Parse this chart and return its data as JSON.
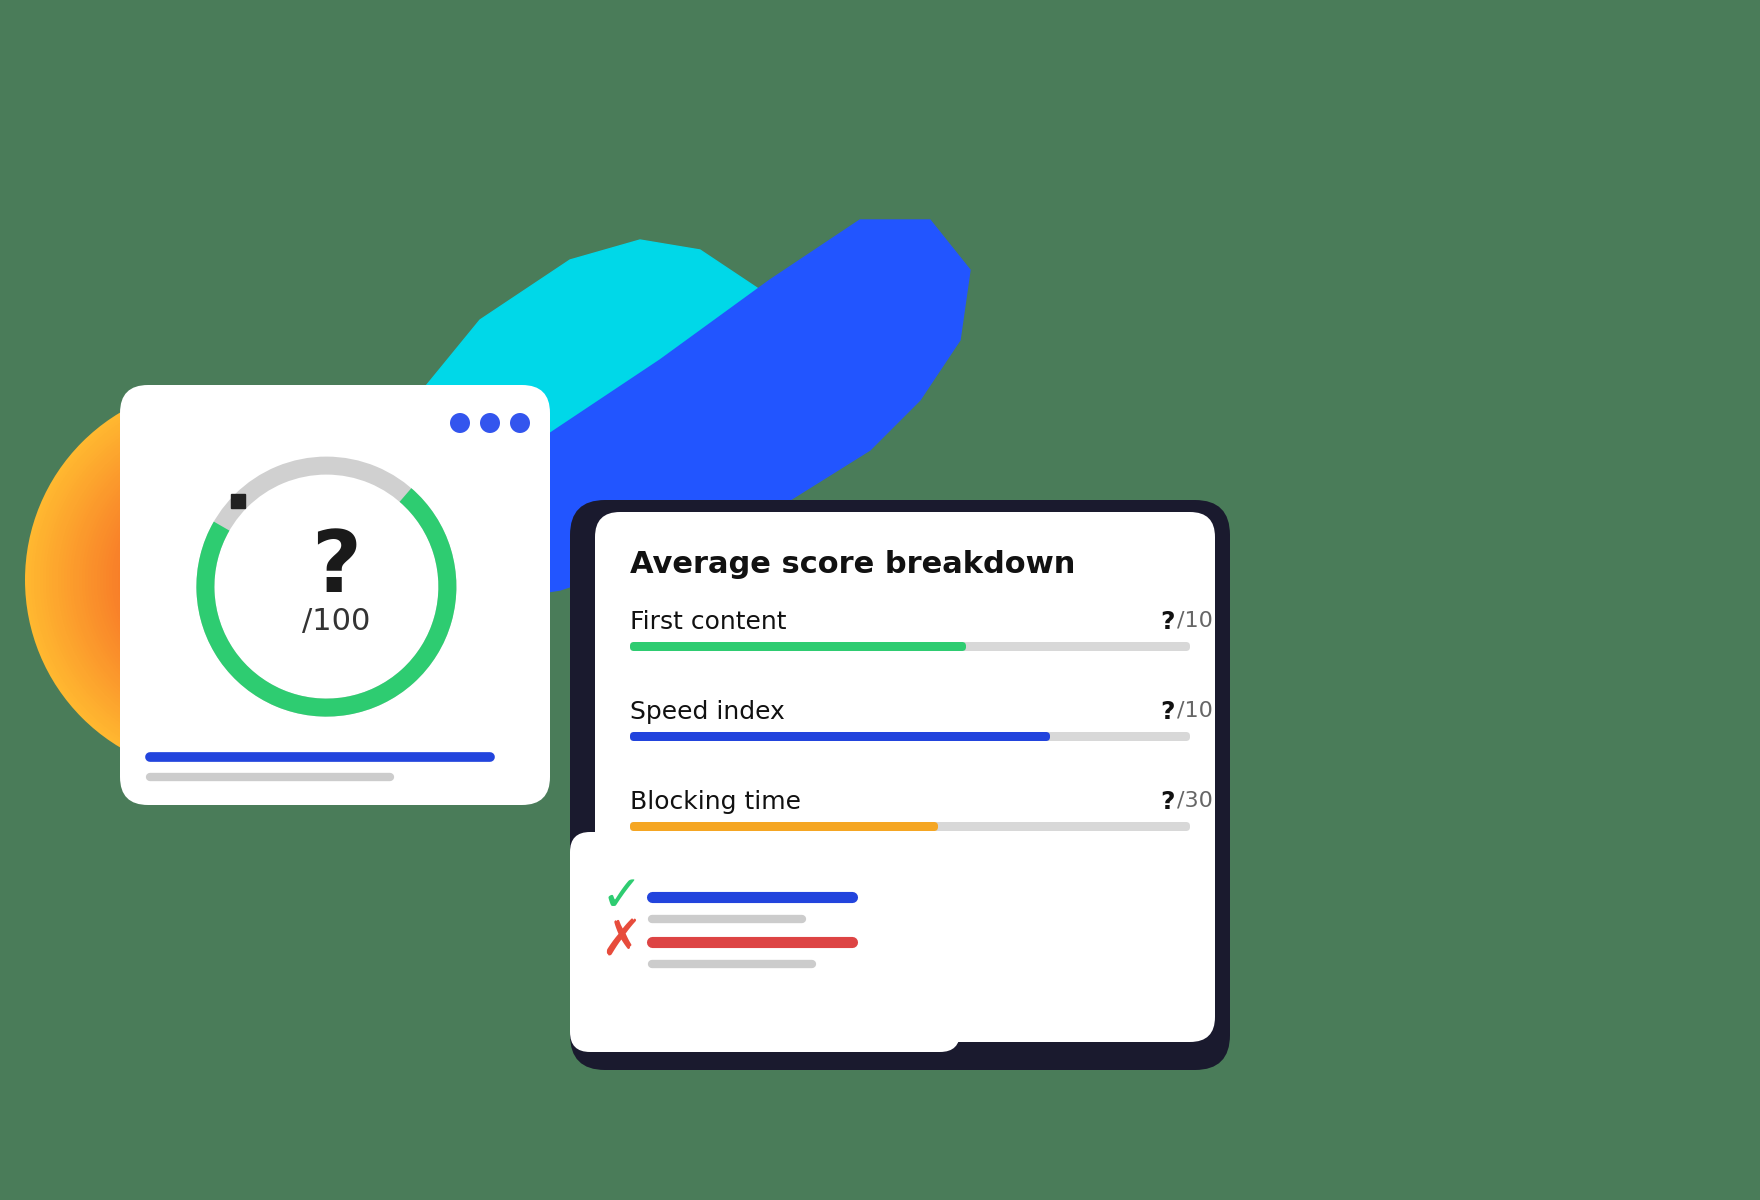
{
  "bg_color": "#4a7c59",
  "title": "Average score breakdown",
  "metrics": [
    {
      "label": "First content",
      "score": "?",
      "max": "/10",
      "bar_fill": "#2ecc71",
      "bar_pct": 0.6,
      "bar_bg": "#d8d8d8"
    },
    {
      "label": "Speed index",
      "score": "?",
      "max": "/10",
      "bar_fill": "#2244dd",
      "bar_pct": 0.75,
      "bar_bg": "#d8d8d8"
    },
    {
      "label": "Blocking time",
      "score": "?",
      "max": "/30",
      "bar_fill": "#f5a623",
      "bar_pct": 0.55,
      "bar_bg": "#d8d8d8"
    }
  ],
  "ring_fill_color": "#2ecc71",
  "ring_bg_color": "#d0d0d0",
  "ring_pct": 0.72,
  "dot_color": "#3355ee",
  "check_color": "#2ecc71",
  "cross_color": "#e74c3c",
  "status_blue_color": "#2244dd",
  "status_red_color": "#dd4444",
  "dark_frame_color": "#1a1a2e",
  "blob_teal_top": "#00d8e8",
  "blob_teal_bottom": "#00bcd4",
  "blob_blue_left": "#2255ff",
  "blob_blue_right": "#00aaff",
  "blob_orange_top": "#ffb830",
  "blob_orange_bottom": "#f04020",
  "blob_right_teal1": "#00c8d8",
  "blob_right_teal2": "#00a8e8"
}
